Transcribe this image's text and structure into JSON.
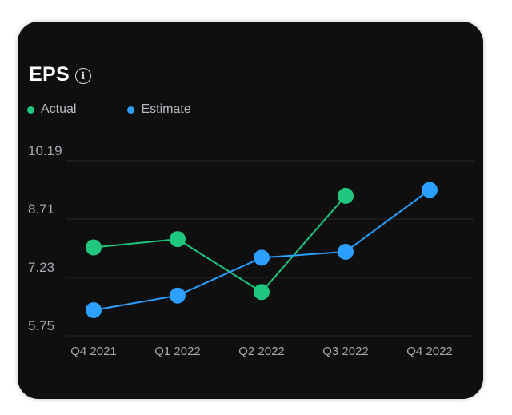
{
  "card": {
    "title": "EPS",
    "info_icon": "info-icon"
  },
  "colors": {
    "background": "#0f0f10",
    "actual": "#1fc87e",
    "estimate": "#2ba0ff",
    "grid": "#2a2a2e",
    "tick_text": "#a6a6b0"
  },
  "chart_data": {
    "type": "line",
    "title": "EPS",
    "categories": [
      "Q4 2021",
      "Q1 2022",
      "Q2 2022",
      "Q3 2022",
      "Q4 2022"
    ],
    "y_ticks": [
      "10.19",
      "8.71",
      "7.23",
      "5.75"
    ],
    "ylim": [
      5.75,
      10.19
    ],
    "legend_position": "top-left",
    "grid": true,
    "series": [
      {
        "name": "Actual",
        "color": "#1fc87e",
        "values": [
          7.99,
          8.2,
          6.86,
          9.3,
          null
        ]
      },
      {
        "name": "Estimate",
        "color": "#2ba0ff",
        "values": [
          6.4,
          6.77,
          7.73,
          7.88,
          9.45
        ]
      }
    ]
  }
}
